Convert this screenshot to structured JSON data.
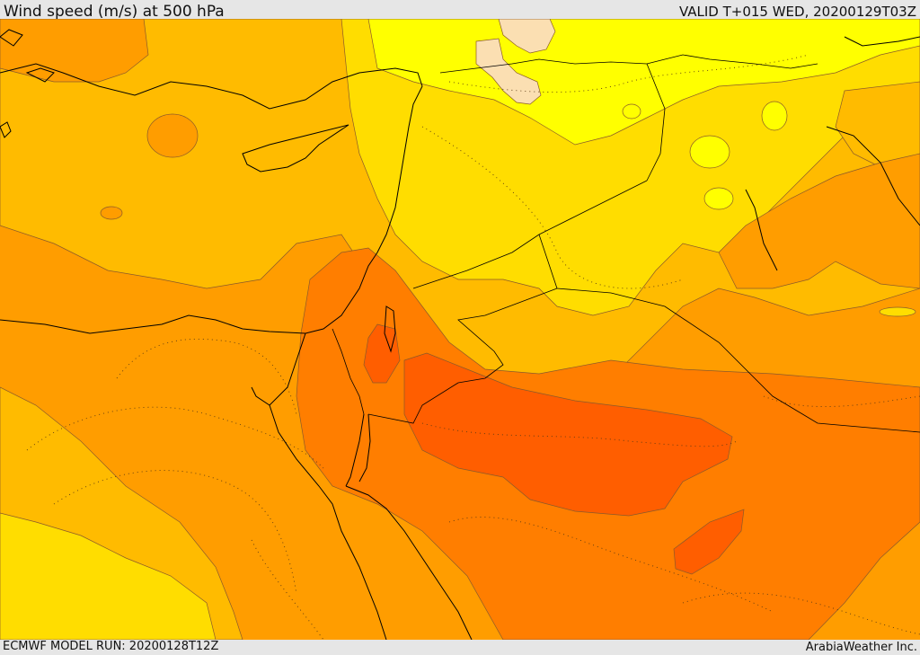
{
  "header": {
    "title": "Wind speed (m/s) at 500 hPa",
    "valid_time": "VALID T+015 WED, 20200129T03Z"
  },
  "footer": {
    "model_run": "ECMWF MODEL RUN: 20200128T12Z",
    "credit": "ArabiaWeather Inc."
  },
  "map": {
    "variable": "wind speed",
    "level": "500 hPa",
    "palette": {
      "band_lightest": "#fbdfb2",
      "band_1": "#ffff00",
      "band_2": "#ffdd00",
      "band_3": "#ffbb00",
      "band_4": "#ff9d00",
      "band_5": "#ff7e00",
      "band_6": "#ff5e00",
      "contour_line": "#8a5a2a",
      "coast_border": "#000000"
    }
  }
}
